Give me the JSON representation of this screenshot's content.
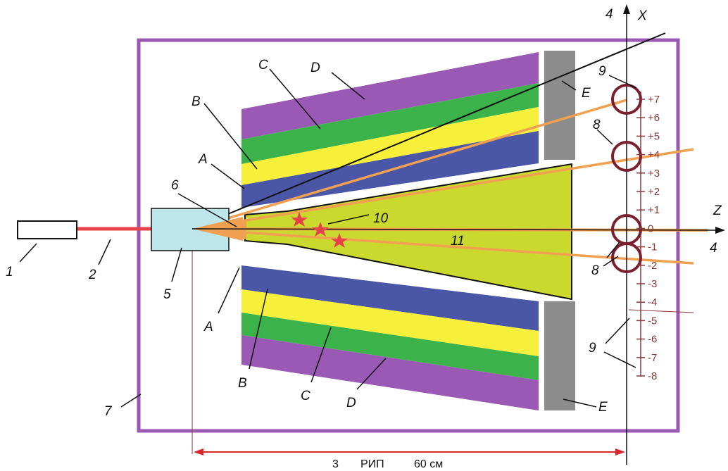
{
  "labels": {
    "n1": "1",
    "n2": "2",
    "n3": "3",
    "n4_top": "4",
    "n4_right": "4",
    "n5": "5",
    "n6": "6",
    "n7": "7",
    "n8_upper": "8",
    "n8_lower": "8",
    "n9_top": "9",
    "n9_bottom": "9",
    "n10": "10",
    "n11": "11",
    "a_top": "A",
    "a_bottom": "A",
    "b_top": "B",
    "b_bottom": "B",
    "c_top": "C",
    "c_bottom": "C",
    "d_top": "D",
    "d_bottom": "D",
    "e_top": "E",
    "e_bottom": "E",
    "axis_x": "X",
    "axis_z": "Z"
  },
  "scale_ticks": [
    "+7",
    "+6",
    "+5",
    "+4",
    "+3",
    "+2",
    "+1",
    "0",
    "-1",
    "-2",
    "-3",
    "-4",
    "-5",
    "-6",
    "-7",
    "-8"
  ],
  "caption": {
    "num": "3",
    "text": "РИП",
    "distance": "60 см"
  },
  "colors": {
    "chamber": "#9b59b6",
    "layer_a": "#4a56a6",
    "layer_b": "#f7f03a",
    "layer_c": "#3cb24a",
    "layer_d": "#9b59b6",
    "layer_e": "#8c8c8c",
    "cone": "#c9d92e",
    "beam": "#f0a050",
    "laser": "#e8414a",
    "target": "#bfe6ea",
    "ring": "#7a1f2e",
    "star": "#e8414a",
    "dimension": "#d8262c"
  }
}
